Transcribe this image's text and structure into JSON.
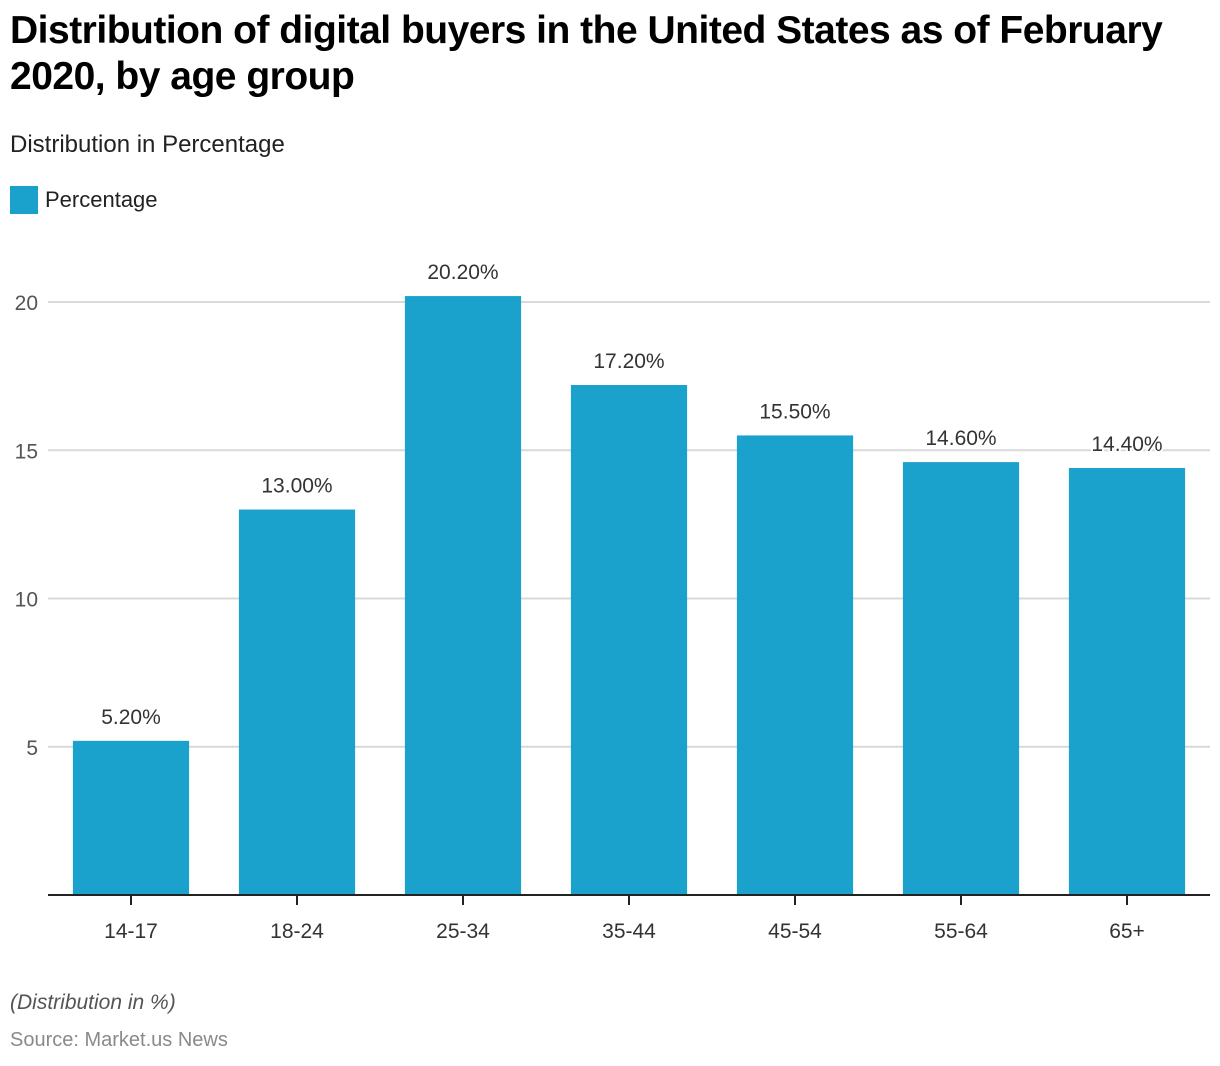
{
  "title": "Distribution of digital buyers in the United States as of February 2020, by age group",
  "subtitle": "Distribution in Percentage",
  "legend": {
    "label": "Percentage",
    "color": "#1aa1cc"
  },
  "note": "(Distribution in %)",
  "source": "Source: Market.us News",
  "colors": {
    "bar": "#1aa1cc",
    "grid": "#d9d9d9",
    "axis": "#222222",
    "tick_text": "#555555",
    "label_text": "#333333"
  },
  "chart_data": {
    "type": "bar",
    "title": "Distribution of digital buyers in the United States as of February 2020, by age group",
    "subtitle": "Distribution in Percentage",
    "xlabel": "",
    "ylabel": "",
    "categories": [
      "14-17",
      "18-24",
      "25-34",
      "35-44",
      "45-54",
      "55-64",
      "65+"
    ],
    "series": [
      {
        "name": "Percentage",
        "values": [
          5.2,
          13.0,
          20.2,
          17.2,
          15.5,
          14.6,
          14.4
        ]
      }
    ],
    "data_labels": [
      "5.20%",
      "13.00%",
      "20.20%",
      "17.20%",
      "15.50%",
      "14.60%",
      "14.40%"
    ],
    "yticks": [
      5,
      10,
      15,
      20
    ],
    "ylim": [
      0,
      20.2
    ],
    "grid": true,
    "legend_position": "top-left"
  }
}
